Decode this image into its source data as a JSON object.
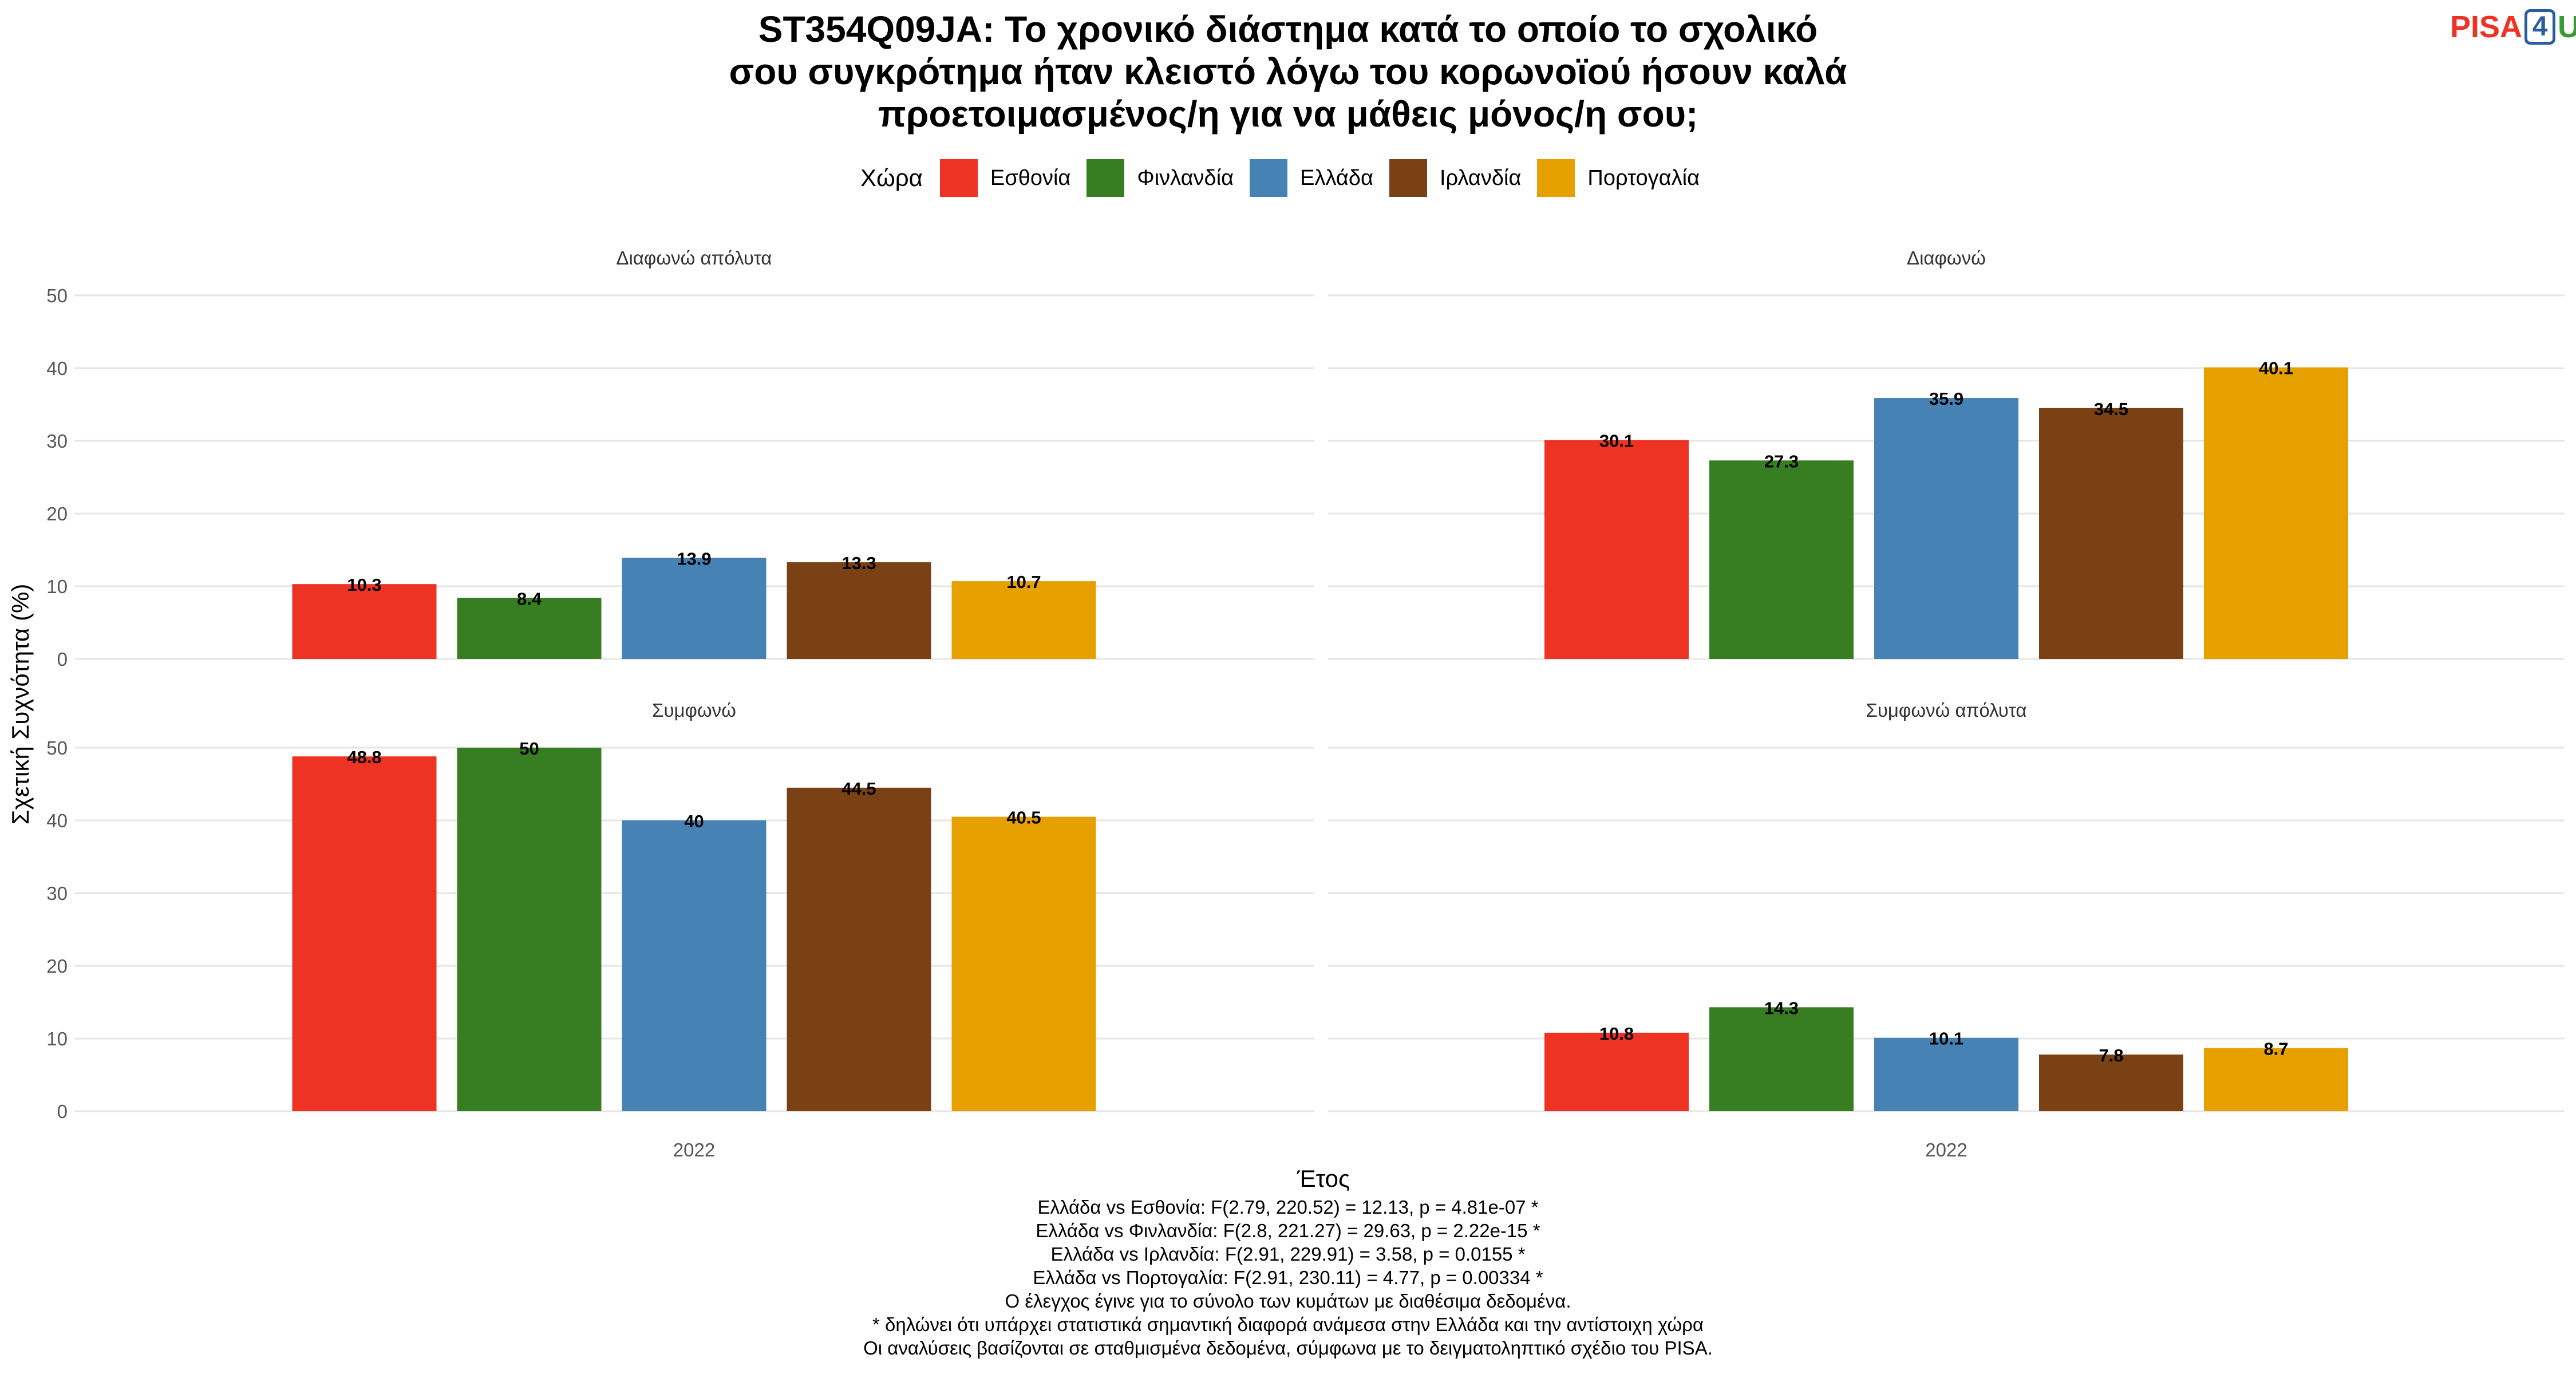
{
  "title_lines": [
    "ST354Q09JA: Το χρονικό διάστημα κατά το οποίο το σχολικό",
    "σου συγκρότημα ήταν κλειστό λόγω του κορωνοϊού ήσουν καλά",
    "προετοιμασμένος/η για να μάθεις μόνος/η σου;"
  ],
  "logo": {
    "part1": "PISA",
    "part2": "4",
    "part3": "U"
  },
  "legend": {
    "title": "Χώρα",
    "items": [
      {
        "label": "Εσθονία",
        "color": "#ee3224"
      },
      {
        "label": "Φινλανδία",
        "color": "#377e22"
      },
      {
        "label": "Ελλάδα",
        "color": "#4682b4"
      },
      {
        "label": "Ιρλανδία",
        "color": "#7a4214"
      },
      {
        "label": "Πορτογαλία",
        "color": "#e6a000"
      }
    ]
  },
  "chart_data": {
    "type": "bar",
    "ylabel": "Σχετική Συχνότητα (%)",
    "xlabel": "Έτος",
    "ylim": [
      0,
      50
    ],
    "yticks": [
      "0",
      "10",
      "20",
      "30",
      "40",
      "50"
    ],
    "grid": true,
    "legend_position": "top",
    "categories": [
      "2022"
    ],
    "panels": [
      {
        "title": "Διαφωνώ απόλυτα",
        "values": [
          10.3,
          8.4,
          13.9,
          13.3,
          10.7
        ],
        "labels": [
          "10.3",
          "8.4",
          "13.9",
          "13.3",
          "10.7"
        ]
      },
      {
        "title": "Διαφωνώ",
        "values": [
          30.1,
          27.3,
          35.9,
          34.5,
          40.1
        ],
        "labels": [
          "30.1",
          "27.3",
          "35.9",
          "34.5",
          "40.1"
        ]
      },
      {
        "title": "Συμφωνώ",
        "values": [
          48.8,
          50,
          40,
          44.5,
          40.5
        ],
        "labels": [
          "48.8",
          "50",
          "40",
          "44.5",
          "40.5"
        ]
      },
      {
        "title": "Συμφωνώ απόλυτα",
        "values": [
          10.8,
          14.3,
          10.1,
          7.8,
          8.7
        ],
        "labels": [
          "10.8",
          "14.3",
          "10.1",
          "7.8",
          "8.7"
        ]
      }
    ]
  },
  "footer_lines": [
    "Ελλάδα vs Εσθονία: F(2.79, 220.52) = 12.13, p = 4.81e-07 *",
    "Ελλάδα vs Φινλανδία: F(2.8, 221.27) = 29.63, p = 2.22e-15 *",
    "Ελλάδα vs Ιρλανδία: F(2.91, 229.91) = 3.58, p = 0.0155 *",
    "Ελλάδα vs Πορτογαλία: F(2.91, 230.11) = 4.77, p = 0.00334 *",
    "Ο έλεγχος έγινε για το σύνολο των κυμάτων με διαθέσιμα δεδομένα.",
    "* δηλώνει ότι υπάρχει στατιστικά σημαντική διαφορά ανάμεσα στην Ελλάδα και την αντίστοιχη χώρα",
    "Οι αναλύσεις βασίζονται σε σταθμισμένα δεδομένα, σύμφωνα με το δειγματοληπτικό σχέδιο του PISA."
  ]
}
